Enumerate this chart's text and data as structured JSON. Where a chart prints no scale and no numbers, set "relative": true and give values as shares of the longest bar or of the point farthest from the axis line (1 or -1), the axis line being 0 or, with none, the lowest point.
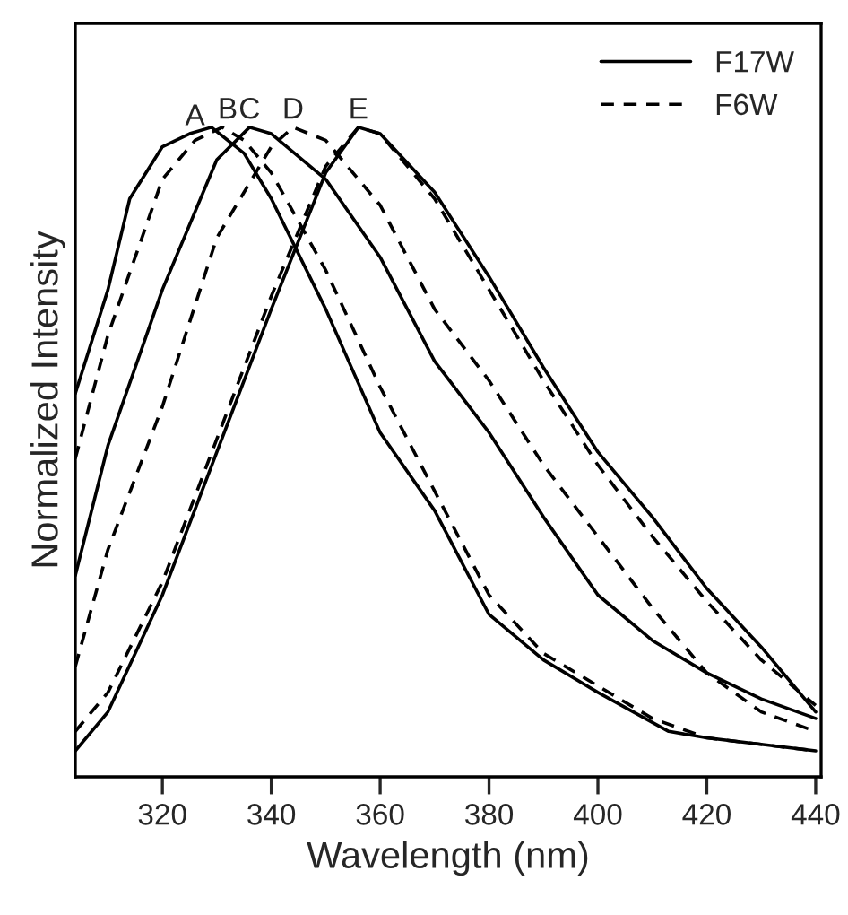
{
  "chart_data": {
    "type": "line",
    "relative": true,
    "xlabel": "Wavelength (nm)",
    "ylabel": "Normalized Intensity",
    "xlim": [
      304,
      441
    ],
    "xticks": [
      320,
      340,
      360,
      380,
      400,
      420,
      440
    ],
    "legend": "top right",
    "tick_labels": "x",
    "series": [
      {
        "name": "F17W",
        "color": "#000000",
        "line_style": "solid",
        "x": [
          304,
          310,
          314,
          320,
          325,
          329,
          335,
          340,
          350,
          360,
          370,
          380,
          390,
          400,
          413,
          420,
          430,
          440
        ],
        "values": [
          0.59,
          0.75,
          0.89,
          0.97,
          0.99,
          1.0,
          0.96,
          0.89,
          0.72,
          0.53,
          0.41,
          0.25,
          0.18,
          0.13,
          0.07,
          0.06,
          0.05,
          0.04
        ]
      },
      {
        "name": "F6W",
        "color": "#000000",
        "line_style": "dashed",
        "x": [
          304,
          310,
          320,
          326,
          331,
          335,
          340,
          350,
          360,
          370,
          380,
          390,
          400,
          410,
          420,
          430,
          440
        ],
        "values": [
          0.49,
          0.68,
          0.92,
          0.98,
          1.0,
          0.98,
          0.93,
          0.78,
          0.6,
          0.44,
          0.28,
          0.19,
          0.14,
          0.09,
          0.06,
          0.05,
          0.04
        ]
      },
      {
        "color": "#000000",
        "line_style": "solid",
        "x": [
          304,
          310,
          320,
          330,
          336,
          340,
          350,
          360,
          370,
          380,
          390,
          400,
          410,
          420,
          430,
          440
        ],
        "values": [
          0.31,
          0.51,
          0.75,
          0.95,
          1.0,
          0.99,
          0.92,
          0.8,
          0.64,
          0.53,
          0.4,
          0.28,
          0.21,
          0.16,
          0.12,
          0.09
        ]
      },
      {
        "color": "#000000",
        "line_style": "dashed",
        "x": [
          304,
          310,
          320,
          330,
          340,
          344,
          350,
          360,
          370,
          380,
          390,
          400,
          410,
          420,
          430,
          440
        ],
        "values": [
          0.17,
          0.35,
          0.57,
          0.83,
          0.97,
          1.0,
          0.98,
          0.88,
          0.72,
          0.61,
          0.48,
          0.37,
          0.26,
          0.16,
          0.1,
          0.07
        ]
      },
      {
        "color": "#000000",
        "line_style": "solid",
        "x": [
          304,
          310,
          320,
          330,
          340,
          350,
          356,
          360,
          370,
          380,
          390,
          400,
          410,
          420,
          430,
          440
        ],
        "values": [
          0.04,
          0.1,
          0.28,
          0.5,
          0.72,
          0.93,
          1.0,
          0.99,
          0.9,
          0.77,
          0.63,
          0.5,
          0.4,
          0.29,
          0.2,
          0.1
        ]
      },
      {
        "color": "#000000",
        "line_style": "dashed",
        "x": [
          304,
          310,
          320,
          330,
          340,
          350,
          356,
          360,
          370,
          380,
          390,
          400,
          410,
          420,
          430,
          440
        ],
        "values": [
          0.07,
          0.13,
          0.3,
          0.52,
          0.74,
          0.94,
          1.0,
          0.99,
          0.89,
          0.75,
          0.61,
          0.48,
          0.37,
          0.27,
          0.18,
          0.11
        ]
      }
    ],
    "annotations": [
      {
        "text": "A",
        "x": 326,
        "y": 0.99
      },
      {
        "text": "B",
        "x": 332,
        "y": 1.0
      },
      {
        "text": "C",
        "x": 336,
        "y": 1.0
      },
      {
        "text": "D",
        "x": 344,
        "y": 1.0
      },
      {
        "text": "E",
        "x": 356,
        "y": 1.0
      }
    ]
  }
}
